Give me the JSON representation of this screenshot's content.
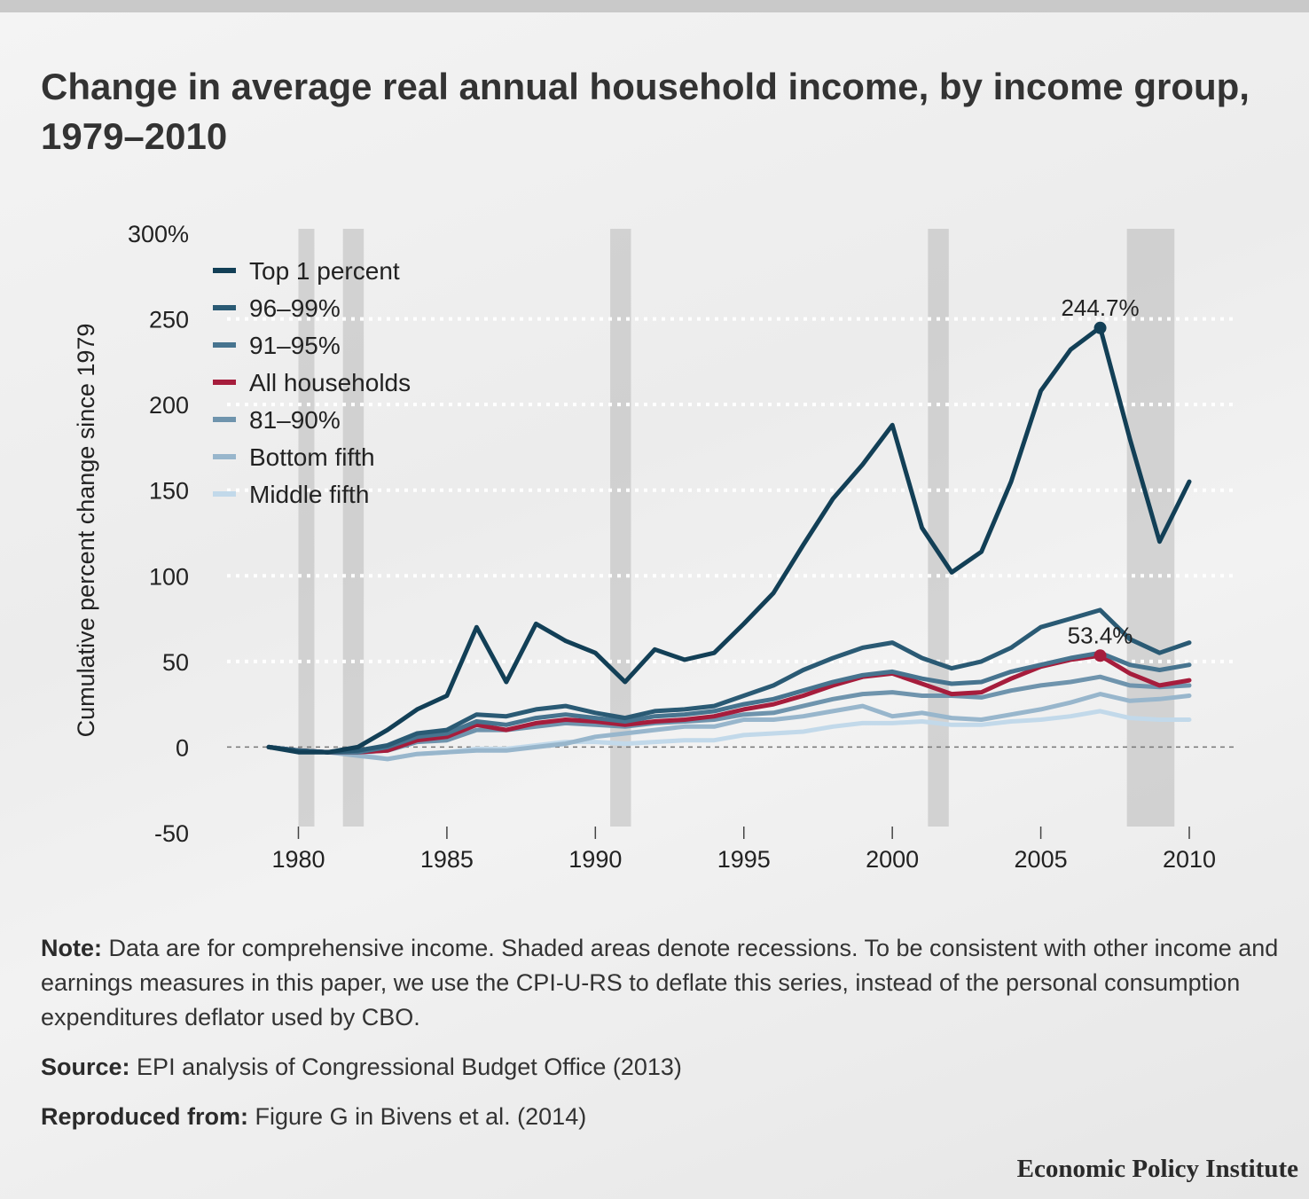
{
  "title": "Change in average real annual household income, by income group, 1979–2010",
  "notes": {
    "note_label": "Note:",
    "note_text": "Data are for comprehensive income. Shaded areas denote recessions. To be consistent with other income and earnings measures in this paper, we use the CPI-U-RS to deflate this series, instead of the personal consumption expenditures deflator used by CBO.",
    "source_label": "Source:",
    "source_text": "EPI analysis of Congressional Budget Office (2013)",
    "repro_label": "Reproduced from:",
    "repro_text": "Figure G in Bivens et al. (2014)"
  },
  "brand": "Economic Policy Institute",
  "chart_data": {
    "type": "line",
    "title": "Change in average real annual household income, by income group, 1979–2010",
    "xlabel": "",
    "ylabel": "Cumulative percent change since 1979",
    "xlim": [
      1979,
      2010
    ],
    "ylim": [
      -50,
      300
    ],
    "y_ticks": [
      300,
      250,
      200,
      150,
      100,
      50,
      0,
      -50
    ],
    "y_tick_labels": [
      "300%",
      "250",
      "200",
      "150",
      "100",
      "50",
      "0",
      "-50"
    ],
    "x_ticks": [
      1980,
      1985,
      1990,
      1995,
      2000,
      2005,
      2010
    ],
    "x_tick_labels": [
      "1980",
      "1985",
      "1990",
      "1995",
      "2000",
      "2005",
      "2010"
    ],
    "legend_position": "top-left",
    "recessions": [
      [
        1980,
        1980.5
      ],
      [
        1981.5,
        1982.2
      ],
      [
        1990.5,
        1991.2
      ],
      [
        2001.2,
        2001.9
      ],
      [
        2007.9,
        2009.5
      ]
    ],
    "x": [
      1979,
      1980,
      1981,
      1982,
      1983,
      1984,
      1985,
      1986,
      1987,
      1988,
      1989,
      1990,
      1991,
      1992,
      1993,
      1994,
      1995,
      1996,
      1997,
      1998,
      1999,
      2000,
      2001,
      2002,
      2003,
      2004,
      2005,
      2006,
      2007,
      2008,
      2009,
      2010
    ],
    "series": [
      {
        "name": "Top 1 percent",
        "color": "#123f56",
        "values": [
          0,
          -3,
          -3,
          0,
          10,
          22,
          30,
          70,
          38,
          72,
          62,
          55,
          38,
          57,
          51,
          55,
          72,
          90,
          118,
          145,
          165,
          188,
          128,
          102,
          114,
          155,
          208,
          232,
          245,
          180,
          120,
          155
        ]
      },
      {
        "name": "96–99%",
        "color": "#2a5a74",
        "values": [
          0,
          -2,
          -3,
          -2,
          1,
          8,
          10,
          19,
          18,
          22,
          24,
          20,
          17,
          21,
          22,
          24,
          30,
          36,
          45,
          52,
          58,
          61,
          52,
          46,
          50,
          58,
          70,
          75,
          80,
          63,
          55,
          61
        ]
      },
      {
        "name": "91–95%",
        "color": "#47748f",
        "values": [
          0,
          -2,
          -3,
          -3,
          0,
          6,
          8,
          15,
          13,
          17,
          19,
          17,
          15,
          18,
          19,
          21,
          25,
          28,
          33,
          38,
          42,
          44,
          40,
          37,
          38,
          44,
          48,
          52,
          55,
          48,
          45,
          48
        ]
      },
      {
        "name": "All households",
        "color": "#a61d3c",
        "values": [
          0,
          -2,
          -3,
          -3,
          -2,
          4,
          6,
          13,
          10,
          14,
          16,
          15,
          13,
          15,
          16,
          18,
          22,
          25,
          30,
          36,
          41,
          43,
          37,
          31,
          32,
          40,
          47,
          51,
          53.4,
          43,
          36,
          39
        ]
      },
      {
        "name": "81–90%",
        "color": "#6f94ad",
        "values": [
          0,
          -2,
          -3,
          -3,
          -2,
          3,
          4,
          10,
          10,
          12,
          14,
          13,
          12,
          14,
          15,
          16,
          19,
          20,
          24,
          28,
          31,
          32,
          30,
          30,
          29,
          33,
          36,
          38,
          41,
          36,
          35,
          36
        ]
      },
      {
        "name": "Bottom fifth",
        "color": "#98b6cc",
        "values": [
          0,
          -2,
          -3,
          -5,
          -7,
          -4,
          -3,
          -2,
          -2,
          0,
          2,
          6,
          8,
          10,
          12,
          12,
          16,
          16,
          18,
          21,
          24,
          18,
          20,
          17,
          16,
          19,
          22,
          26,
          31,
          27,
          28,
          30
        ]
      },
      {
        "name": "Middle fifth",
        "color": "#c2d9ea",
        "values": [
          0,
          -2,
          -3,
          -4,
          -7,
          -4,
          -3,
          -1,
          -1,
          1,
          3,
          3,
          2,
          3,
          4,
          4,
          7,
          8,
          9,
          12,
          14,
          14,
          15,
          13,
          13,
          15,
          16,
          18,
          21,
          17,
          16,
          16
        ]
      }
    ],
    "annotations": [
      {
        "text": "244.7%",
        "x": 2007,
        "y": 244.7,
        "series": "Top 1 percent"
      },
      {
        "text": "53.4%",
        "x": 2007,
        "y": 53.4,
        "series": "All households"
      }
    ]
  }
}
